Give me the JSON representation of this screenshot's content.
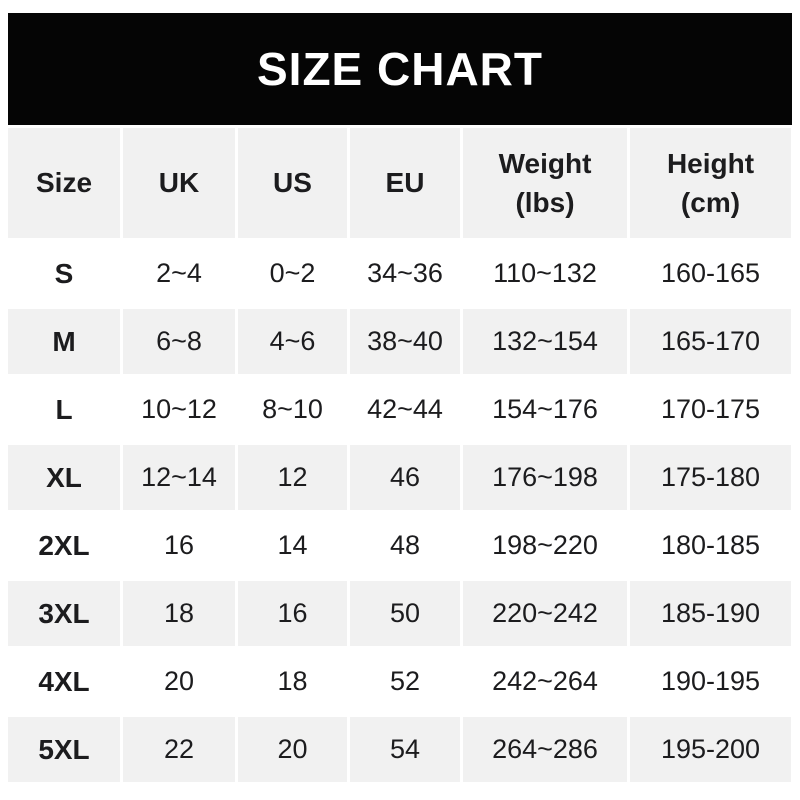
{
  "banner": {
    "title": "SIZE CHART",
    "bg_color": "#050505",
    "text_color": "#ffffff"
  },
  "table": {
    "columns": [
      {
        "key": "size",
        "label": "Size"
      },
      {
        "key": "uk",
        "label": "UK"
      },
      {
        "key": "us",
        "label": "US"
      },
      {
        "key": "eu",
        "label": "EU"
      },
      {
        "key": "weight",
        "label": "Weight\n(lbs)"
      },
      {
        "key": "height",
        "label": "Height\n(cm)"
      }
    ],
    "rows": [
      {
        "size": "S",
        "uk": "2~4",
        "us": "0~2",
        "eu": "34~36",
        "weight": "110~132",
        "height": "160-165"
      },
      {
        "size": "M",
        "uk": "6~8",
        "us": "4~6",
        "eu": "38~40",
        "weight": "132~154",
        "height": "165-170"
      },
      {
        "size": "L",
        "uk": "10~12",
        "us": "8~10",
        "eu": "42~44",
        "weight": "154~176",
        "height": "170-175"
      },
      {
        "size": "XL",
        "uk": "12~14",
        "us": "12",
        "eu": "46",
        "weight": "176~198",
        "height": "175-180"
      },
      {
        "size": "2XL",
        "uk": "16",
        "us": "14",
        "eu": "48",
        "weight": "198~220",
        "height": "180-185"
      },
      {
        "size": "3XL",
        "uk": "18",
        "us": "16",
        "eu": "50",
        "weight": "220~242",
        "height": "185-190"
      },
      {
        "size": "4XL",
        "uk": "20",
        "us": "18",
        "eu": "52",
        "weight": "242~264",
        "height": "190-195"
      },
      {
        "size": "5XL",
        "uk": "22",
        "us": "20",
        "eu": "54",
        "weight": "264~286",
        "height": "195-200"
      }
    ],
    "colors": {
      "alt_row_bg": "#f1f1f1",
      "text": "#1c1c1e"
    }
  }
}
